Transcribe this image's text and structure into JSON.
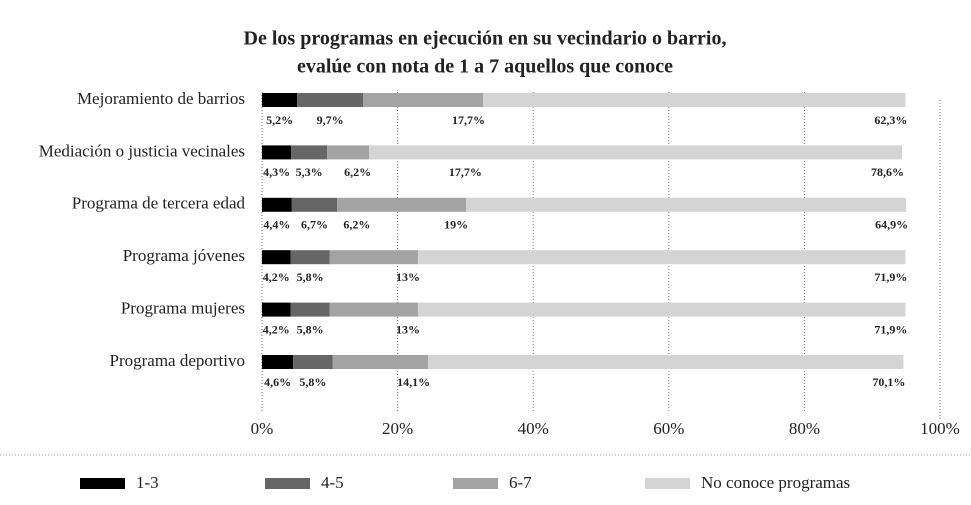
{
  "chart_data": {
    "type": "stacked-barh",
    "title": [
      "De los programas en ejecución en su vecindario o barrio,",
      "evalúe con nota de 1 a 7 aquellos que conoce"
    ],
    "categories": [
      "Mejoramiento de barrios",
      "Mediación o justicia vecinales",
      "Programa de tercera edad",
      "Programa jóvenes",
      "Programa mujeres",
      "Programa deportivo"
    ],
    "series": [
      {
        "name": "1-3",
        "color": "#000000",
        "values": [
          5.2,
          4.3,
          4.4,
          4.2,
          4.2,
          4.6
        ],
        "value_labels": [
          "5,2%",
          "4,3%",
          "4,4%",
          "4,2%",
          "4,2%",
          "4,6%"
        ]
      },
      {
        "name": "4-5",
        "color": "#666666",
        "values": [
          9.7,
          5.3,
          6.7,
          5.8,
          5.8,
          5.8
        ],
        "value_labels": [
          "9,7%",
          "5,3%",
          "6,7%",
          "5,8%",
          "5,8%",
          "5,8%"
        ]
      },
      {
        "name": "6-7",
        "color": "#a3a3a3",
        "values": [
          17.7,
          6.2,
          19,
          13,
          13,
          14.1
        ],
        "value_labels": [
          "17,7%",
          "6,2%",
          "19%",
          "13%",
          "13%",
          "14,1%"
        ]
      },
      {
        "name": "No conoce programas",
        "color": "#d4d4d4",
        "values": [
          62.3,
          78.6,
          64.9,
          71.9,
          71.9,
          70.1
        ],
        "value_labels": [
          "62,3%",
          "78,6%",
          "64,9%",
          "71,9%",
          "71,9%",
          "70,1%"
        ]
      }
    ],
    "annotations": [
      {
        "category": 1,
        "text": "17,7%"
      },
      {
        "category": 2,
        "text": "6,2%"
      }
    ],
    "xlim": [
      0,
      100
    ],
    "xticks": [
      {
        "value": 0,
        "label": "0%"
      },
      {
        "value": 20,
        "label": "20%"
      },
      {
        "value": 40,
        "label": "40%"
      },
      {
        "value": 60,
        "label": "60%"
      },
      {
        "value": 80,
        "label": "80%"
      },
      {
        "value": 100,
        "label": "100%"
      }
    ],
    "grid": true
  }
}
